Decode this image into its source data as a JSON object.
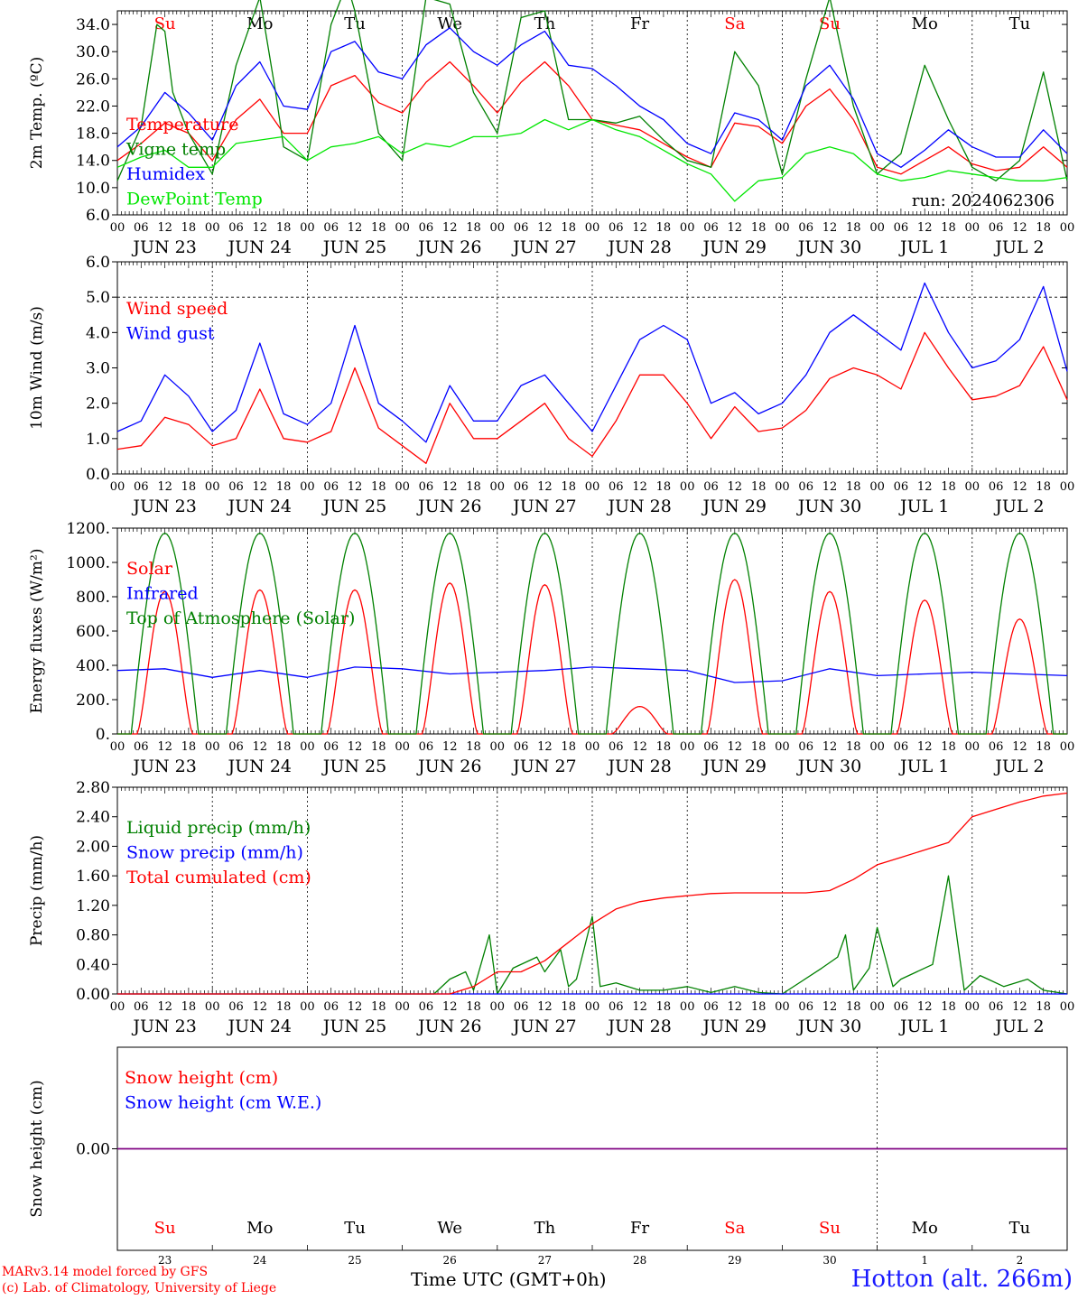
{
  "meta": {
    "run": "run: 2024062306",
    "credit_line1": "MARv3.14 model forced by GFS",
    "credit_line2": "(c) Lab. of Climatology, University of Liege",
    "time_axis_label": "Time UTC (GMT+0h)",
    "station": "Hotton (alt. 266m)"
  },
  "colors": {
    "red": "#ff0000",
    "green": "#008000",
    "blue": "#0000ff",
    "lime": "#00e600",
    "purple": "#800080"
  },
  "axis": {
    "hour_ticks": [
      "00",
      "06",
      "12",
      "18"
    ],
    "last_tick": "00",
    "dates": [
      "JUN 23",
      "JUN 24",
      "JUN 25",
      "JUN 26",
      "JUN 27",
      "JUN 28",
      "JUN 29",
      "JUN 30",
      "JUL  1",
      "JUL  2"
    ],
    "days": [
      "Su",
      "Mo",
      "Tu",
      "We",
      "Th",
      "Fr",
      "Sa",
      "Su",
      "Mo",
      "Tu"
    ],
    "day_colors": [
      "#ff0000",
      "#000000",
      "#000000",
      "#000000",
      "#000000",
      "#000000",
      "#ff0000",
      "#ff0000",
      "#000000",
      "#000000"
    ],
    "day_numbers": [
      "23",
      "24",
      "25",
      "26",
      "27",
      "28",
      "29",
      "30",
      "1",
      "2"
    ]
  },
  "chart_data": [
    {
      "type": "line",
      "ylabel": "2m Temp. (ºC)",
      "ylim": [
        6,
        36
      ],
      "yticks": [
        "6.0",
        "10.0",
        "14.0",
        "18.0",
        "22.0",
        "26.0",
        "30.0",
        "34.0"
      ],
      "x_unit": "hours since JUN 23 00 UTC",
      "series": [
        {
          "name": "Temperature",
          "color": "red",
          "x": [
            0,
            6,
            12,
            18,
            24,
            30,
            36,
            42,
            48,
            54,
            60,
            66,
            72,
            78,
            84,
            90,
            96,
            102,
            108,
            114,
            120,
            126,
            132,
            138,
            144,
            150,
            156,
            162,
            168,
            174,
            180,
            186,
            192,
            198,
            204,
            210,
            216,
            222,
            228,
            234,
            240
          ],
          "y": [
            14,
            16.5,
            19.5,
            18,
            14,
            20,
            23,
            18,
            18,
            25,
            26.5,
            22.5,
            21,
            25.5,
            28.5,
            25,
            21,
            25.5,
            28.5,
            25,
            20,
            19.2,
            18.5,
            16.5,
            14.5,
            13,
            19.5,
            19,
            16.5,
            22,
            24.5,
            20,
            13,
            12,
            14,
            16,
            13.5,
            12.5,
            13,
            16,
            13
          ]
        },
        {
          "name": "Vigne temp",
          "color": "green",
          "x": [
            0,
            6,
            10,
            12,
            14,
            18,
            24,
            30,
            36,
            40,
            42,
            48,
            54,
            58,
            60,
            66,
            72,
            78,
            84,
            90,
            96,
            102,
            108,
            114,
            120,
            126,
            132,
            138,
            144,
            150,
            156,
            162,
            168,
            174,
            180,
            186,
            192,
            198,
            204,
            210,
            216,
            222,
            228,
            234,
            240
          ],
          "y": [
            11,
            19,
            34,
            33,
            24,
            18,
            12,
            28,
            38,
            24,
            16,
            14,
            34,
            40,
            36,
            18,
            14,
            38,
            37,
            24,
            18,
            35,
            36,
            20,
            20,
            19.5,
            20.5,
            17,
            14,
            13,
            30,
            25,
            12,
            26,
            38,
            22,
            12,
            15,
            28,
            20,
            13,
            11,
            14,
            27,
            11
          ]
        },
        {
          "name": "Humidex",
          "color": "blue",
          "x": [
            0,
            6,
            12,
            18,
            24,
            30,
            36,
            42,
            48,
            54,
            60,
            66,
            72,
            78,
            84,
            90,
            96,
            102,
            108,
            114,
            120,
            126,
            132,
            138,
            144,
            150,
            156,
            162,
            168,
            174,
            180,
            186,
            192,
            198,
            204,
            210,
            216,
            222,
            228,
            234,
            240
          ],
          "y": [
            16,
            19,
            24,
            21,
            17,
            25,
            28.5,
            22,
            21.5,
            30,
            31.5,
            27,
            26,
            31,
            33.5,
            30,
            28,
            31,
            33,
            28,
            27.5,
            25,
            22,
            20,
            16.5,
            15,
            21,
            20,
            17,
            25,
            28,
            23,
            15,
            13,
            15.5,
            18.5,
            16,
            14.5,
            14.5,
            18.5,
            15
          ]
        },
        {
          "name": "DewPoint Temp",
          "color": "lime",
          "x": [
            0,
            6,
            12,
            18,
            24,
            30,
            36,
            42,
            48,
            54,
            60,
            66,
            72,
            78,
            84,
            90,
            96,
            102,
            108,
            114,
            120,
            126,
            132,
            138,
            144,
            150,
            156,
            162,
            168,
            174,
            180,
            186,
            192,
            198,
            204,
            210,
            216,
            222,
            228,
            234,
            240
          ],
          "y": [
            13,
            14.5,
            15.5,
            13,
            13,
            16.5,
            17,
            17.5,
            14,
            16,
            16.5,
            17.5,
            15,
            16.5,
            16,
            17.5,
            17.5,
            18,
            20,
            18.5,
            20,
            18.5,
            17.5,
            15.5,
            13.5,
            12,
            8,
            11,
            11.5,
            15,
            16,
            15,
            12,
            11,
            11.5,
            12.5,
            12,
            11.5,
            11,
            11,
            11.5
          ]
        }
      ]
    },
    {
      "type": "line",
      "ylabel": "10m Wind (m/s)",
      "ylim": [
        0,
        6
      ],
      "yticks": [
        "0.0",
        "1.0",
        "2.0",
        "3.0",
        "4.0",
        "5.0",
        "6.0"
      ],
      "reference_line": 5,
      "series": [
        {
          "name": "Wind speed",
          "color": "red",
          "x": [
            0,
            6,
            12,
            18,
            24,
            30,
            36,
            42,
            48,
            54,
            60,
            66,
            72,
            78,
            84,
            90,
            96,
            102,
            108,
            114,
            120,
            126,
            132,
            138,
            144,
            150,
            156,
            162,
            168,
            174,
            180,
            186,
            192,
            198,
            204,
            210,
            216,
            222,
            228,
            234,
            240
          ],
          "y": [
            0.7,
            0.8,
            1.6,
            1.4,
            0.8,
            1.0,
            2.4,
            1.0,
            0.9,
            1.2,
            3.0,
            1.3,
            0.8,
            0.3,
            2.0,
            1.0,
            1.0,
            1.5,
            2.0,
            1.0,
            0.5,
            1.5,
            2.8,
            2.8,
            2.0,
            1.0,
            1.9,
            1.2,
            1.3,
            1.8,
            2.7,
            3.0,
            2.8,
            2.4,
            4.0,
            3.0,
            2.1,
            2.2,
            2.5,
            3.6,
            2.1
          ]
        },
        {
          "name": "Wind gust",
          "color": "blue",
          "x": [
            0,
            6,
            12,
            18,
            24,
            30,
            36,
            42,
            48,
            54,
            60,
            66,
            72,
            78,
            84,
            90,
            96,
            102,
            108,
            114,
            120,
            126,
            132,
            138,
            144,
            150,
            156,
            162,
            168,
            174,
            180,
            186,
            192,
            198,
            204,
            210,
            216,
            222,
            228,
            234,
            240
          ],
          "y": [
            1.2,
            1.5,
            2.8,
            2.2,
            1.2,
            1.8,
            3.7,
            1.7,
            1.4,
            2.0,
            4.2,
            2.0,
            1.5,
            0.9,
            2.5,
            1.5,
            1.5,
            2.5,
            2.8,
            2.0,
            1.2,
            2.5,
            3.8,
            4.2,
            3.8,
            2.0,
            2.3,
            1.7,
            2.0,
            2.8,
            4.0,
            4.5,
            4.0,
            3.5,
            5.4,
            4.0,
            3.0,
            3.2,
            3.8,
            5.3,
            2.9
          ]
        }
      ]
    },
    {
      "type": "line",
      "ylabel": "Energy fluxes (W/m²)",
      "ylim": [
        0,
        1200
      ],
      "yticks": [
        "0.",
        "200.",
        "400.",
        "600.",
        "800.",
        "1000.",
        "1200."
      ],
      "series": [
        {
          "name": "Solar",
          "color": "red",
          "daily_peaks_w_m2": [
            830,
            840,
            840,
            880,
            870,
            160,
            900,
            830,
            780,
            670
          ]
        },
        {
          "name": "Infrared",
          "color": "blue",
          "x": [
            0,
            12,
            24,
            36,
            48,
            60,
            72,
            84,
            96,
            108,
            120,
            132,
            144,
            156,
            168,
            180,
            192,
            204,
            216,
            228,
            240
          ],
          "y": [
            370,
            380,
            330,
            370,
            330,
            390,
            380,
            350,
            360,
            370,
            390,
            380,
            370,
            300,
            310,
            380,
            340,
            350,
            360,
            350,
            340
          ]
        },
        {
          "name": "Top of Atmosphere (Solar)",
          "color": "green",
          "daily_peak_w_m2": 1170
        }
      ]
    },
    {
      "type": "line",
      "ylabel": "Precip (mm/h)",
      "ylim": [
        0,
        2.8
      ],
      "yticks": [
        "0.00",
        "0.40",
        "0.80",
        "1.20",
        "1.60",
        "2.00",
        "2.40",
        "2.80"
      ],
      "series": [
        {
          "name": "Liquid precip (mm/h)",
          "color": "green",
          "x": [
            0,
            80,
            84,
            88,
            90,
            94,
            96,
            100,
            106,
            108,
            112,
            114,
            116,
            120,
            122,
            126,
            132,
            138,
            144,
            150,
            156,
            162,
            168,
            178,
            182,
            184,
            186,
            190,
            192,
            196,
            198,
            206,
            210,
            214,
            218,
            220,
            224,
            230,
            234,
            240
          ],
          "y": [
            0,
            0,
            0.2,
            0.3,
            0.05,
            0.8,
            0,
            0.35,
            0.5,
            0.3,
            0.6,
            0.1,
            0.2,
            1.05,
            0.1,
            0.15,
            0.05,
            0.05,
            0.1,
            0.02,
            0.1,
            0.02,
            0,
            0.35,
            0.5,
            0.8,
            0.05,
            0.35,
            0.9,
            0.1,
            0.2,
            0.4,
            1.6,
            0.05,
            0.25,
            0.2,
            0.1,
            0.2,
            0.05,
            0
          ]
        },
        {
          "name": "Snow precip (mm/h)",
          "color": "blue",
          "x": [
            0,
            240
          ],
          "y": [
            0,
            0
          ]
        },
        {
          "name": "Total cumulated (cm)",
          "color": "red",
          "x": [
            0,
            84,
            90,
            96,
            102,
            108,
            114,
            120,
            126,
            132,
            138,
            144,
            150,
            156,
            162,
            168,
            174,
            180,
            186,
            192,
            198,
            204,
            210,
            216,
            222,
            228,
            234,
            240
          ],
          "y": [
            0,
            0,
            0.1,
            0.3,
            0.3,
            0.45,
            0.7,
            0.95,
            1.15,
            1.25,
            1.3,
            1.33,
            1.36,
            1.37,
            1.37,
            1.37,
            1.37,
            1.4,
            1.55,
            1.75,
            1.85,
            1.95,
            2.05,
            2.4,
            2.5,
            2.6,
            2.68,
            2.72
          ]
        }
      ]
    },
    {
      "type": "line",
      "ylabel": "Snow height (cm)",
      "yticks": [
        "0.00"
      ],
      "series": [
        {
          "name": "Snow height (cm)",
          "color": "red",
          "x": [
            0,
            240
          ],
          "y": [
            0,
            0
          ]
        },
        {
          "name": "Snow height (cm W.E.)",
          "color": "blue",
          "x": [
            0,
            240
          ],
          "y": [
            0,
            0
          ]
        }
      ]
    }
  ]
}
